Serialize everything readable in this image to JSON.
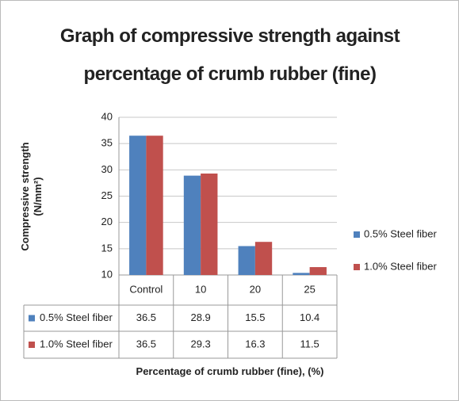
{
  "chart_data": {
    "type": "bar",
    "title": "Graph of compressive strength against percentage of crumb rubber (fine)",
    "y_label": "Compressive strength (N/mm²)",
    "x_label": "Percentage of crumb rubber (fine), (%)",
    "categories": [
      "Control",
      "10",
      "20",
      "25"
    ],
    "series": [
      {
        "name": "0.5% Steel fiber",
        "color": "#4f81bd",
        "values": [
          36.5,
          28.9,
          15.5,
          10.4
        ]
      },
      {
        "name": "1.0% Steel fiber",
        "color": "#c0504d",
        "values": [
          36.5,
          29.3,
          16.3,
          11.5
        ]
      }
    ],
    "ylim": [
      10,
      40
    ],
    "yticks": [
      10,
      15,
      20,
      25,
      30,
      35,
      40
    ],
    "grid": true,
    "legend": "right",
    "data_table": true
  }
}
